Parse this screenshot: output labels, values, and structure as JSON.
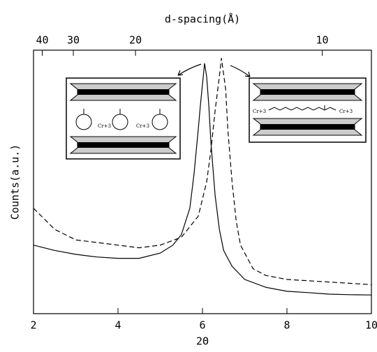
{
  "chart_data": {
    "type": "line",
    "xlabel": "2Θ",
    "ylabel": "Counts(a.u.)",
    "x2label": "d-spacing(Å)",
    "xlim": [
      2,
      10
    ],
    "xticks": [
      2,
      4,
      6,
      8,
      10
    ],
    "x2ticks": [
      40,
      30,
      20,
      10
    ],
    "ylim": [
      0,
      100
    ],
    "annotations": [
      "Cr+3"
    ],
    "series": [
      {
        "color": "#000000",
        "dash": false,
        "x": [
          2,
          2.5,
          3,
          3.5,
          4,
          4.5,
          5,
          5.3,
          5.5,
          5.7,
          5.8,
          5.9,
          5.95,
          6.05,
          6.1,
          6.15,
          6.2,
          6.3,
          6.4,
          6.5,
          6.7,
          7,
          7.5,
          8,
          8.5,
          9,
          9.5,
          10
        ],
        "values": [
          26,
          24,
          22.5,
          21.5,
          21,
          21,
          23,
          26,
          30,
          40,
          53,
          70,
          79,
          95,
          90,
          79,
          65,
          45,
          32,
          24,
          18,
          13,
          10,
          8.5,
          8,
          7.4,
          7.2,
          7.1
        ]
      },
      {
        "color": "#000000",
        "dash": true,
        "x": [
          2,
          2.5,
          3,
          3.5,
          4,
          4.5,
          5,
          5.5,
          5.9,
          6.1,
          6.2,
          6.3,
          6.4,
          6.45,
          6.55,
          6.6,
          6.7,
          6.8,
          6.9,
          7.2,
          7.5,
          8,
          8.5,
          9,
          9.5,
          10
        ],
        "values": [
          40,
          32,
          28,
          27,
          26,
          25,
          26,
          29,
          37,
          50,
          62,
          77,
          90,
          97,
          85,
          70,
          50,
          35,
          26,
          17,
          14.5,
          13,
          12.5,
          12,
          11.5,
          11
        ]
      }
    ]
  }
}
